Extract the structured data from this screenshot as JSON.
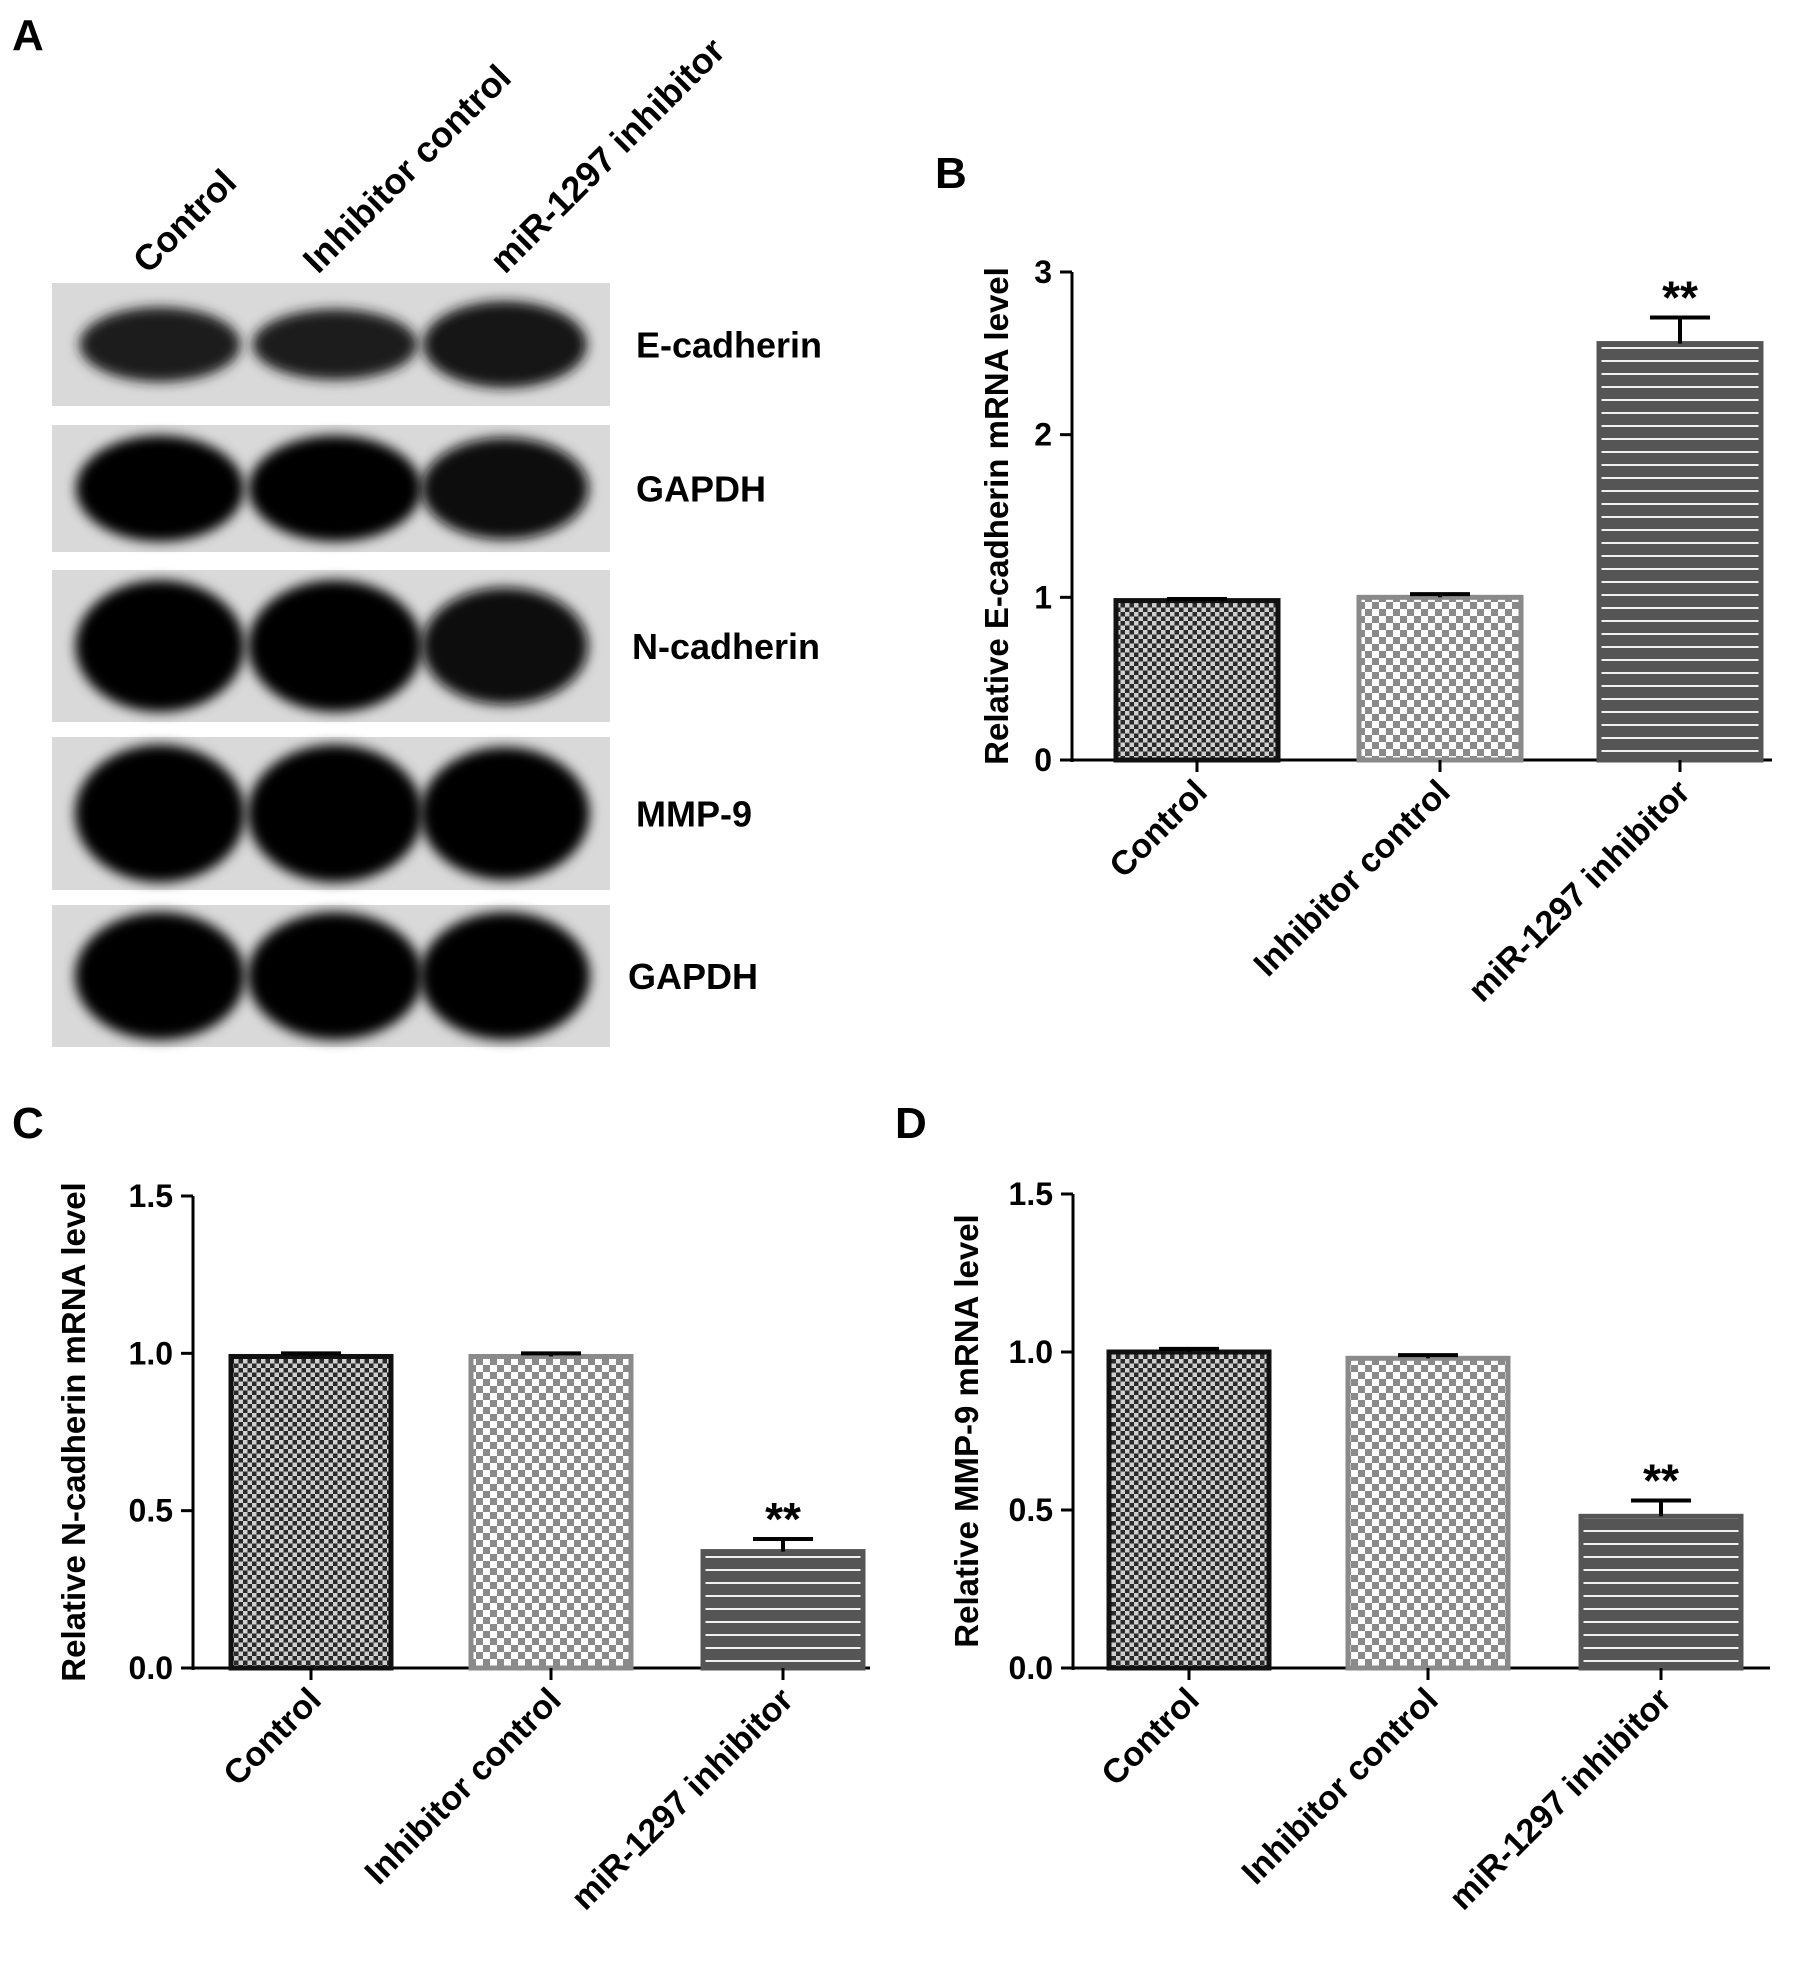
{
  "panel_a": {
    "letter": "A",
    "lanes": [
      "Control",
      "Inhibitor control",
      "miR-1297 inhibitor"
    ],
    "bands": [
      {
        "label": "E-cadherin",
        "intensity": [
          0.55,
          0.5,
          0.7
        ]
      },
      {
        "label": "GAPDH",
        "intensity": [
          0.9,
          0.9,
          0.85
        ]
      },
      {
        "label": "N-cadherin",
        "intensity": [
          0.95,
          0.95,
          0.8
        ]
      },
      {
        "label": "MMP-9",
        "intensity": [
          1.0,
          1.0,
          0.95
        ]
      },
      {
        "label": "GAPDH",
        "intensity": [
          1.0,
          1.0,
          1.0
        ]
      }
    ]
  },
  "colors": {
    "bar_control": "#2a2a2a",
    "bar_inhibitor_control": "#8a8a8a",
    "bar_mir_inhibitor": "#555555",
    "blot_background": "#d9d9d9"
  },
  "chart_data": [
    {
      "panel": "B",
      "type": "bar",
      "categories": [
        "Control",
        "Inhibitor control",
        "miR-1297 inhibitor"
      ],
      "values": [
        0.98,
        1.0,
        2.56
      ],
      "errors": [
        0.01,
        0.02,
        0.16
      ],
      "significance": [
        "",
        "",
        "**"
      ],
      "ylabel": "Relative E-cadherin mRNA level",
      "ylim": [
        0,
        3
      ],
      "yticks": [
        0,
        1,
        2,
        3
      ],
      "ytick_labels": [
        "0",
        "1",
        "2",
        "3"
      ]
    },
    {
      "panel": "C",
      "type": "bar",
      "categories": [
        "Control",
        "Inhibitor control",
        "miR-1297 inhibitor"
      ],
      "values": [
        0.99,
        0.99,
        0.37
      ],
      "errors": [
        0.01,
        0.01,
        0.04
      ],
      "significance": [
        "",
        "",
        "**"
      ],
      "ylabel": "Relative N-cadherin mRNA level",
      "ylim": [
        0,
        1.5
      ],
      "yticks": [
        0,
        0.5,
        1.0,
        1.5
      ],
      "ytick_labels": [
        "0.0",
        "0.5",
        "1.0",
        "1.5"
      ]
    },
    {
      "panel": "D",
      "type": "bar",
      "categories": [
        "Control",
        "Inhibitor control",
        "miR-1297 inhibitor"
      ],
      "values": [
        1.0,
        0.98,
        0.48
      ],
      "errors": [
        0.01,
        0.01,
        0.05
      ],
      "significance": [
        "",
        "",
        "**"
      ],
      "ylabel": "Relative MMP-9 mRNA level",
      "ylim": [
        0,
        1.5
      ],
      "yticks": [
        0,
        0.5,
        1.0,
        1.5
      ],
      "ytick_labels": [
        "0.0",
        "0.5",
        "1.0",
        "1.5"
      ]
    }
  ]
}
